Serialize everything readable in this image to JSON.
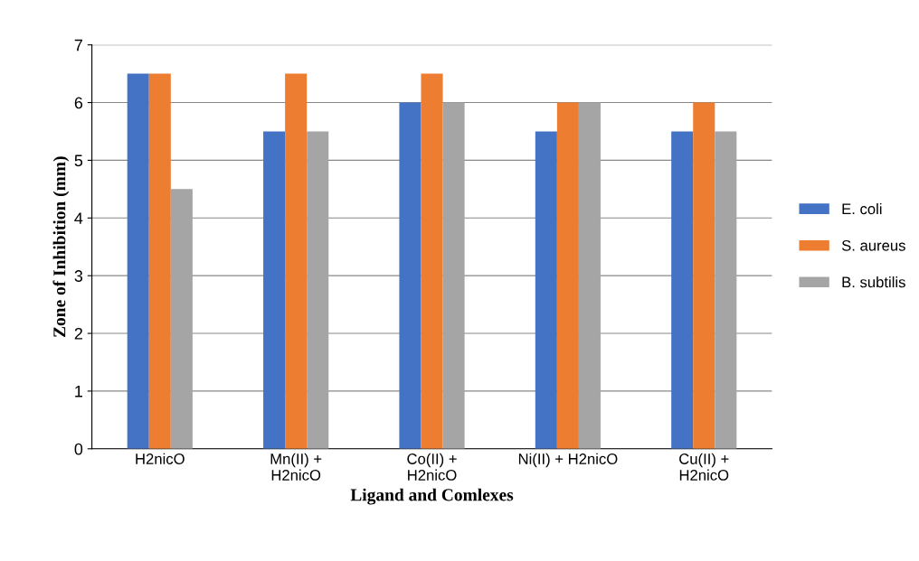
{
  "chart_data": {
    "type": "bar",
    "xlabel": "Ligand and Comlexes",
    "ylabel": "Zone of Inhibition (mm)",
    "categories": [
      "H2nicO",
      "Mn(II) +\nH2nicO",
      "Co(II) +\nH2nicO",
      "Ni(II) + H2nicO",
      "Cu(II) +\nH2nicO"
    ],
    "series": [
      {
        "name": "E. coli",
        "color": "#4472c4",
        "values": [
          6.5,
          5.5,
          6,
          5.5,
          5.5
        ]
      },
      {
        "name": "S. aureus",
        "color": "#ed7d31",
        "values": [
          6.5,
          6.5,
          6.5,
          6,
          6
        ]
      },
      {
        "name": "B. subtilis",
        "color": "#a5a5a5",
        "values": [
          4.5,
          5.5,
          6,
          6,
          5.5
        ]
      }
    ],
    "ylim": [
      0,
      7
    ],
    "yticks": [
      0,
      1,
      2,
      3,
      4,
      5,
      6,
      7
    ],
    "grid": "y",
    "legend": "right"
  }
}
